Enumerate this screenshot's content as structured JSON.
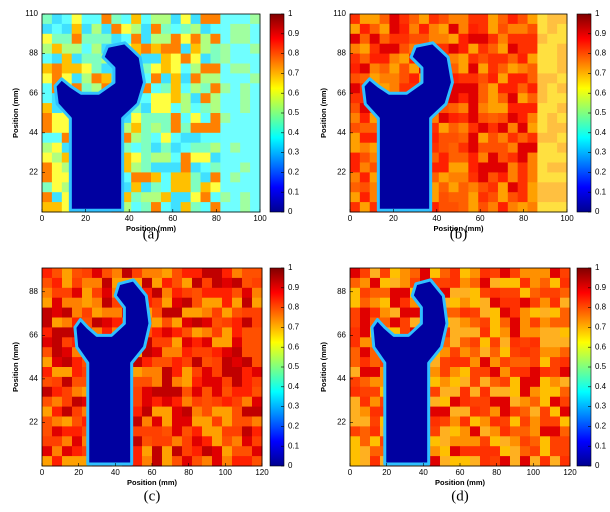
{
  "chart_data": [
    {
      "type": "heatmap",
      "caption": "(a)",
      "xlabel": "Position (mm)",
      "ylabel": "Position (mm)",
      "xlim": [
        0,
        100
      ],
      "xticks": [
        0,
        20,
        40,
        60,
        80,
        100
      ],
      "ylim": [
        0,
        110
      ],
      "yticks": [
        22,
        44,
        66,
        88,
        110
      ],
      "clim": [
        0,
        1
      ],
      "cticks": [
        0,
        0.1,
        0.2,
        0.3,
        0.4,
        0.5,
        0.6,
        0.7,
        0.8,
        0.9,
        1
      ],
      "colormap": "jet"
    },
    {
      "type": "heatmap",
      "caption": "(b)",
      "xlabel": "Position (mm)",
      "ylabel": "Position (mm)",
      "xlim": [
        0,
        100
      ],
      "xticks": [
        0,
        20,
        40,
        60,
        80,
        100
      ],
      "ylim": [
        0,
        110
      ],
      "yticks": [
        22,
        44,
        66,
        88,
        110
      ],
      "clim": [
        0,
        1
      ],
      "cticks": [
        0,
        0.1,
        0.2,
        0.3,
        0.4,
        0.5,
        0.6,
        0.7,
        0.8,
        0.9,
        1
      ],
      "colormap": "jet"
    },
    {
      "type": "heatmap",
      "caption": "(c)",
      "xlabel": "Position (mm)",
      "ylabel": "Position (mm)",
      "xlim": [
        0,
        120
      ],
      "xticks": [
        0,
        20,
        40,
        60,
        80,
        100,
        120
      ],
      "ylim": [
        0,
        100
      ],
      "yticks": [
        22,
        44,
        66,
        88
      ],
      "clim": [
        0,
        1
      ],
      "cticks": [
        0,
        0.1,
        0.2,
        0.3,
        0.4,
        0.5,
        0.6,
        0.7,
        0.8,
        0.9,
        1
      ],
      "colormap": "jet"
    },
    {
      "type": "heatmap",
      "caption": "(d)",
      "xlabel": "Position (mm)",
      "ylabel": "Position (mm)",
      "xlim": [
        0,
        120
      ],
      "xticks": [
        0,
        20,
        40,
        60,
        80,
        100,
        120
      ],
      "ylim": [
        0,
        100
      ],
      "yticks": [
        22,
        44,
        66,
        88
      ],
      "clim": [
        0,
        1
      ],
      "cticks": [
        0,
        0.1,
        0.2,
        0.3,
        0.4,
        0.5,
        0.6,
        0.7,
        0.8,
        0.9,
        1
      ],
      "colormap": "jet"
    }
  ]
}
